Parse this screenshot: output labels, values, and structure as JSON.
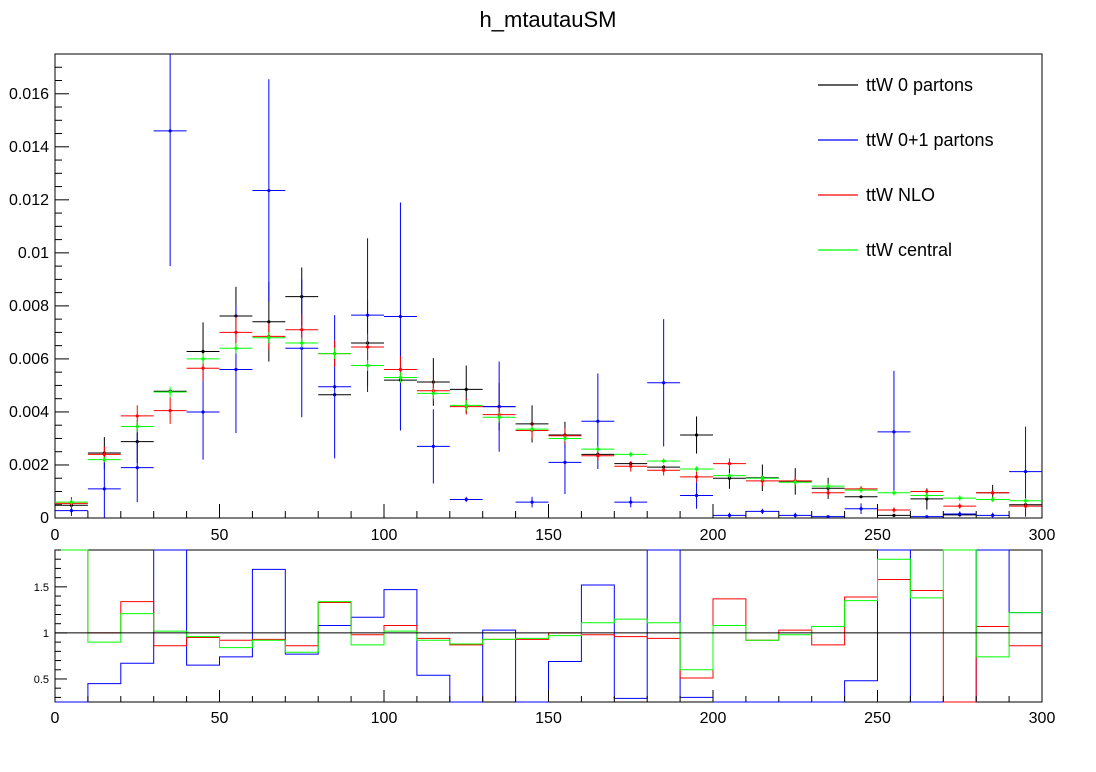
{
  "chart_data": [
    {
      "type": "histogram",
      "title": "h_mtautauSM",
      "xlabel": "",
      "ylabel": "",
      "xlim": [
        0,
        300
      ],
      "ylim": [
        0,
        0.0175
      ],
      "bin_edges": [
        0,
        10,
        20,
        30,
        40,
        50,
        60,
        70,
        80,
        90,
        100,
        110,
        120,
        130,
        140,
        150,
        160,
        170,
        180,
        190,
        200,
        210,
        220,
        230,
        240,
        250,
        260,
        270,
        280,
        290,
        300
      ],
      "x_tick_labels": [
        "0",
        "50",
        "100",
        "150",
        "200",
        "250",
        "300"
      ],
      "y_tick_labels": [
        "0",
        "0.002",
        "0.004",
        "0.006",
        "0.008",
        "0.01",
        "0.012",
        "0.014",
        "0.016"
      ],
      "legend_placement": "top-right",
      "grid": false,
      "series": [
        {
          "name": "ttW 0 partons",
          "color": "#000000",
          "values": [
            0.00048,
            0.00245,
            0.00288,
            0.00478,
            0.00628,
            0.00762,
            0.0074,
            0.00835,
            0.00465,
            0.0066,
            0.0052,
            0.00513,
            0.00485,
            0.0042,
            0.00355,
            0.00313,
            0.0024,
            0.00205,
            0.00192,
            0.00313,
            0.0015,
            0.00152,
            0.00138,
            0.00112,
            0.0008,
            0.0001,
            0.00072,
            0.00012,
            0.00095,
            0.0005
          ],
          "errors": [
            0.0003,
            0.0006,
            0.0008,
            0.0,
            0.0011,
            0.0011,
            0.0015,
            0.0011,
            0.0,
            0.0016,
            0.0,
            0.0009,
            0.0009,
            0.0009,
            0.0007,
            0.0005,
            0.0,
            0.0,
            0.0,
            0.0007,
            0.0004,
            0.0005,
            0.0005,
            0.0004,
            0.0,
            0.0,
            0.0004,
            0.0,
            0.0003,
            0.0
          ]
        },
        {
          "name": "ttW 0+1 partons",
          "color": "#0000ff",
          "values": [
            0.00028,
            0.0011,
            0.0019,
            0.0146,
            0.004,
            0.0056,
            0.01235,
            0.0064,
            0.00495,
            0.00765,
            0.0076,
            0.0027,
            0.0007,
            0.0042,
            0.0006,
            0.0021,
            0.00365,
            0.0006,
            0.0051,
            0.00085,
            0.0001,
            0.00025,
            0.0001,
            5e-05,
            0.00035,
            0.00325,
            5e-05,
            0.00015,
            0.0001,
            0.00175
          ],
          "errors": [
            0.0002,
            0.0011,
            0.0013,
            0.0051,
            0.0018,
            0.0024,
            0.0042,
            0.0026,
            0.0027,
            0.0029,
            0.0043,
            0.0014,
            0.0001,
            0.0017,
            0.0002,
            0.0012,
            0.0018,
            0.0002,
            0.0024,
            0.0005,
            0.0001,
            0.0001,
            0.0001,
            0.0,
            0.0002,
            0.0023,
            0.0,
            0.0001,
            0.0001,
            0.0017
          ]
        },
        {
          "name": "ttW NLO",
          "color": "#ff0000",
          "values": [
            0.00055,
            0.0024,
            0.00385,
            0.00405,
            0.00565,
            0.007,
            0.00685,
            0.0071,
            0.0062,
            0.00645,
            0.0056,
            0.0048,
            0.0042,
            0.0039,
            0.0033,
            0.0031,
            0.00235,
            0.00195,
            0.0018,
            0.00155,
            0.00205,
            0.0014,
            0.0014,
            0.00095,
            0.0011,
            0.0003,
            0.001,
            0.00045,
            0.00095,
            0.00045
          ],
          "errors": [
            0.0002,
            0.0003,
            0.0004,
            0.0005,
            0.0005,
            0.0006,
            0.0005,
            0.0006,
            0.0005,
            0.0005,
            0.0005,
            0.0004,
            0.0003,
            0.0003,
            0.0003,
            0.0003,
            0.0002,
            0.0002,
            0.0002,
            0.0002,
            0.0002,
            0.0002,
            0.0002,
            0.0001,
            0.0001,
            0.0001,
            0.0001,
            0.0001,
            0.0001,
            0.0001
          ]
        },
        {
          "name": "ttW central",
          "color": "#00ff00",
          "values": [
            0.0006,
            0.0022,
            0.00345,
            0.00475,
            0.006,
            0.0064,
            0.0068,
            0.0066,
            0.0062,
            0.00575,
            0.0053,
            0.0047,
            0.00425,
            0.0038,
            0.00335,
            0.003,
            0.0026,
            0.0024,
            0.00215,
            0.00185,
            0.0016,
            0.0015,
            0.00135,
            0.0012,
            0.00105,
            0.00095,
            0.00085,
            0.00075,
            0.0007,
            0.00065
          ],
          "errors": [
            0.0001,
            0.0001,
            0.0002,
            0.0002,
            0.0002,
            0.0002,
            0.0002,
            0.0002,
            0.0002,
            0.0002,
            0.0002,
            0.0002,
            0.0002,
            0.0002,
            0.0001,
            0.0001,
            0.0001,
            0.0001,
            0.0001,
            0.0001,
            0.0001,
            0.0001,
            0.0001,
            0.0001,
            0.0001,
            0.0001,
            0.0001,
            0.0001,
            0.0001,
            0.0001
          ]
        }
      ]
    },
    {
      "type": "histogram",
      "title": "",
      "xlabel": "",
      "ylabel": "",
      "xlim": [
        0,
        300
      ],
      "ylim": [
        0.25,
        1.9
      ],
      "reference_line": 1,
      "bin_edges": [
        0,
        10,
        20,
        30,
        40,
        50,
        60,
        70,
        80,
        90,
        100,
        110,
        120,
        130,
        140,
        150,
        160,
        170,
        180,
        190,
        200,
        210,
        220,
        230,
        240,
        250,
        260,
        270,
        280,
        290,
        300
      ],
      "x_tick_labels": [
        "0",
        "50",
        "100",
        "150",
        "200",
        "250",
        "300"
      ],
      "y_tick_labels": [
        "0.5",
        "1",
        "1.5"
      ],
      "series": [
        {
          "name": "ttW 0+1 partons",
          "color": "#0000ff",
          "values": [
            null,
            0.45,
            0.67,
            2.0,
            0.65,
            0.74,
            1.69,
            0.77,
            1.08,
            1.17,
            1.47,
            0.54,
            0.15,
            1.03,
            0.18,
            0.69,
            1.52,
            0.29,
            2.0,
            0.3,
            0.05,
            0.16,
            0.07,
            0.04,
            0.48,
            2.0,
            0.05,
            0.12,
            2.0,
            1.22
          ]
        },
        {
          "name": "ttW NLO",
          "color": "#ff0000",
          "values": [
            1.95,
            1.0,
            1.34,
            0.86,
            0.95,
            0.92,
            0.93,
            0.86,
            1.33,
            0.98,
            1.08,
            0.94,
            0.87,
            0.93,
            0.93,
            1.0,
            0.98,
            0.96,
            0.94,
            0.51,
            1.37,
            0.92,
            1.03,
            0.87,
            1.39,
            1.58,
            1.46,
            null,
            1.07,
            0.86
          ]
        },
        {
          "name": "ttW central",
          "color": "#00ff00",
          "values": [
            1.95,
            0.9,
            1.21,
            1.02,
            0.96,
            0.84,
            0.92,
            0.79,
            1.34,
            0.87,
            1.02,
            0.92,
            0.88,
            0.93,
            0.94,
            0.97,
            1.11,
            1.15,
            1.11,
            0.6,
            1.08,
            0.92,
            0.98,
            1.07,
            1.35,
            1.8,
            1.38,
            2.0,
            0.74,
            1.22
          ]
        }
      ]
    }
  ]
}
